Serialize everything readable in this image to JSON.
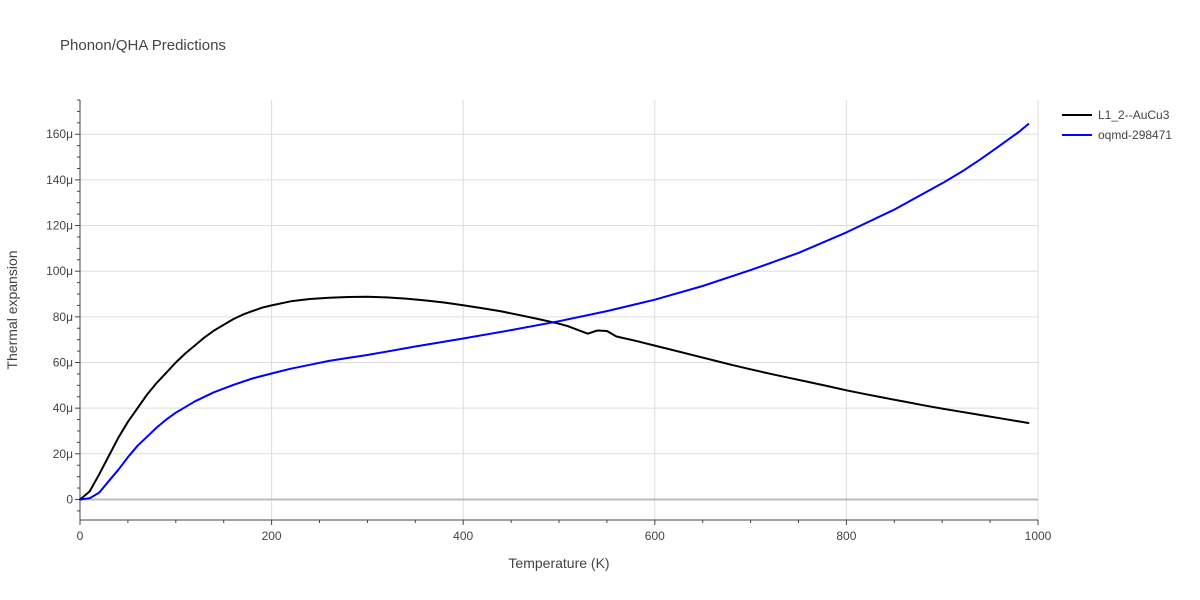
{
  "chart_data": {
    "type": "line",
    "title": "Phonon/QHA Predictions",
    "xlabel": "Temperature (K)",
    "ylabel": "Thermal expansion",
    "xlim": [
      0,
      1000
    ],
    "ylim": [
      -9,
      175
    ],
    "x_ticks": [
      {
        "value": 0,
        "label": "0"
      },
      {
        "value": 200,
        "label": "200"
      },
      {
        "value": 400,
        "label": "400"
      },
      {
        "value": 600,
        "label": "600"
      },
      {
        "value": 800,
        "label": "800"
      },
      {
        "value": 1000,
        "label": "1000"
      }
    ],
    "y_ticks": [
      {
        "value": 0,
        "label": "0"
      },
      {
        "value": 20,
        "label": "20μ"
      },
      {
        "value": 40,
        "label": "40μ"
      },
      {
        "value": 60,
        "label": "60μ"
      },
      {
        "value": 80,
        "label": "80μ"
      },
      {
        "value": 100,
        "label": "100μ"
      },
      {
        "value": 120,
        "label": "120μ"
      },
      {
        "value": 140,
        "label": "140μ"
      },
      {
        "value": 160,
        "label": "160μ"
      }
    ],
    "grid": true,
    "legend_position": "top-right",
    "series": [
      {
        "name": "L1_2--AuCu3",
        "color": "#000000",
        "x": [
          0,
          10,
          20,
          30,
          40,
          50,
          60,
          70,
          80,
          90,
          100,
          110,
          120,
          130,
          140,
          150,
          160,
          170,
          180,
          190,
          200,
          220,
          240,
          260,
          280,
          300,
          320,
          340,
          360,
          380,
          400,
          420,
          440,
          460,
          480,
          500,
          510,
          520,
          530,
          540,
          550,
          560,
          580,
          600,
          620,
          640,
          660,
          680,
          700,
          720,
          740,
          760,
          780,
          800,
          820,
          840,
          860,
          880,
          900,
          920,
          940,
          960,
          980,
          990
        ],
        "y": [
          0,
          3.5,
          11,
          19,
          27,
          34,
          40,
          46,
          51,
          55.5,
          60,
          64,
          67.5,
          71,
          74,
          76.5,
          79,
          81,
          82.5,
          84,
          85,
          86.8,
          87.8,
          88.4,
          88.7,
          88.8,
          88.5,
          88,
          87.2,
          86.3,
          85.1,
          83.8,
          82.4,
          80.7,
          78.9,
          77,
          75.8,
          74.2,
          72.6,
          74,
          73.8,
          71.4,
          69.5,
          67.4,
          65.3,
          63.2,
          61.1,
          59,
          57,
          55.1,
          53.3,
          51.5,
          49.7,
          47.8,
          46.1,
          44.5,
          42.9,
          41.3,
          39.8,
          38.4,
          37,
          35.6,
          34.2,
          33.5
        ]
      },
      {
        "name": "oqmd-298471",
        "color": "#0000ff",
        "x": [
          0,
          10,
          20,
          30,
          40,
          50,
          60,
          70,
          80,
          90,
          100,
          120,
          140,
          160,
          180,
          200,
          220,
          240,
          260,
          280,
          300,
          350,
          400,
          450,
          500,
          550,
          600,
          650,
          700,
          750,
          800,
          850,
          900,
          920,
          940,
          960,
          980,
          990
        ],
        "y": [
          0,
          0.5,
          3,
          8,
          13,
          18.5,
          23.5,
          27.5,
          31.5,
          35,
          38,
          43,
          47,
          50.2,
          53,
          55.2,
          57.3,
          59,
          60.7,
          62,
          63.3,
          67,
          70.5,
          74.2,
          78.1,
          82.5,
          87.5,
          93.5,
          100.5,
          108,
          117,
          127,
          138.5,
          143.5,
          149,
          155,
          161,
          164.5
        ]
      }
    ]
  }
}
